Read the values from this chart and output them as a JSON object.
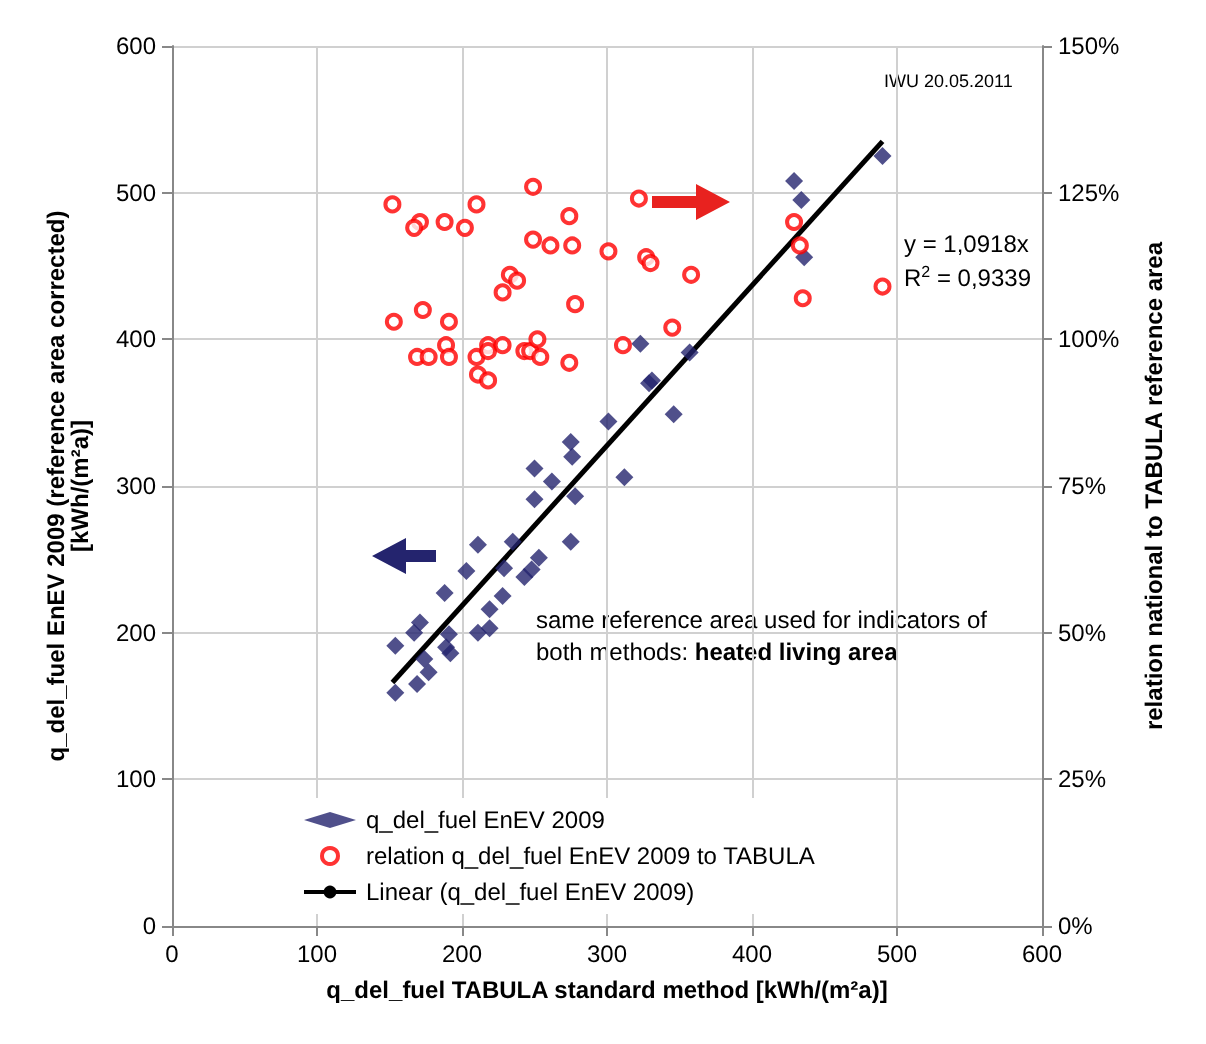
{
  "chart_data": {
    "type": "scatter",
    "xlabel": "q_del_fuel TABULA standard method [kWh/(m²a)]",
    "ylabel": "q_del_fuel EnEV 2009 (reference area corrected)\n[kWh/(m²a)]",
    "y2label": "relation national to TABULA reference area",
    "xlim": [
      0,
      600
    ],
    "xticks": [
      0,
      100,
      200,
      300,
      400,
      500,
      600
    ],
    "ylim": [
      0,
      600
    ],
    "yticks": [
      0,
      100,
      200,
      300,
      400,
      500,
      600
    ],
    "y2lim": [
      0,
      150
    ],
    "y2ticks": [
      {
        "value": 0,
        "label": "0%"
      },
      {
        "value": 25,
        "label": "25%"
      },
      {
        "value": 50,
        "label": "50%"
      },
      {
        "value": 75,
        "label": "75%"
      },
      {
        "value": 100,
        "label": "100%"
      },
      {
        "value": 125,
        "label": "125%"
      },
      {
        "value": 150,
        "label": "150%"
      }
    ],
    "grid": true,
    "legend": "bottom left",
    "annotations": [
      "IWU 20.05.2011",
      "y = 1,0918x",
      "R$^{2}$ = 0,9339",
      "same reference area used for indicators of",
      "both methods:",
      "heated living area"
    ],
    "series": [
      {
        "name": "q_del_fuel EnEV 2009",
        "marker": "diamond",
        "color": "#24246e",
        "x": [
          490,
          429,
          434,
          436,
          323,
          357,
          329,
          331,
          346,
          301,
          312,
          275,
          276,
          262,
          278,
          250,
          250,
          275,
          211,
          235,
          203,
          229,
          253,
          248,
          243,
          188,
          228,
          219,
          219,
          211,
          171,
          167,
          154,
          191,
          189,
          192,
          174,
          177,
          154,
          169
        ],
        "values": [
          525,
          508,
          495,
          456,
          397,
          391,
          370,
          372,
          349,
          344,
          306,
          330,
          320,
          303,
          293,
          312,
          291,
          262,
          260,
          262,
          242,
          244,
          251,
          243,
          238,
          227,
          225,
          216,
          203,
          200,
          207,
          200,
          191,
          199,
          190,
          186,
          182,
          173,
          159,
          165
        ]
      },
      {
        "name": "relation q_del_fuel EnEV 2009 to TABULA",
        "axis": "y2",
        "marker": "circle",
        "color": "#ff0000",
        "x": [
          152,
          171,
          167,
          188,
          202,
          210,
          249,
          274,
          249,
          261,
          276,
          301,
          327,
          330,
          322,
          358,
          233,
          238,
          228,
          278,
          153,
          173,
          191,
          189,
          169,
          177,
          191,
          210,
          218,
          218,
          228,
          211,
          218,
          243,
          247,
          254,
          252,
          274,
          311,
          345,
          429,
          433,
          435,
          490
        ],
        "values": [
          123,
          120,
          119,
          120,
          119,
          123,
          126,
          121,
          117,
          116,
          116,
          115,
          114,
          113,
          124,
          111,
          111,
          110,
          108,
          106,
          103,
          105,
          103,
          99,
          97,
          97,
          97,
          97,
          99,
          98,
          99,
          94,
          93,
          98,
          98,
          97,
          100,
          96,
          99,
          102,
          120,
          116,
          107,
          109
        ]
      },
      {
        "name": "Linear (q_del_fuel EnEV 2009)",
        "type": "line",
        "marker": "none",
        "line_style": "solid",
        "color": "#000000",
        "x": [
          152,
          490
        ],
        "values": [
          166,
          535
        ]
      }
    ]
  }
}
